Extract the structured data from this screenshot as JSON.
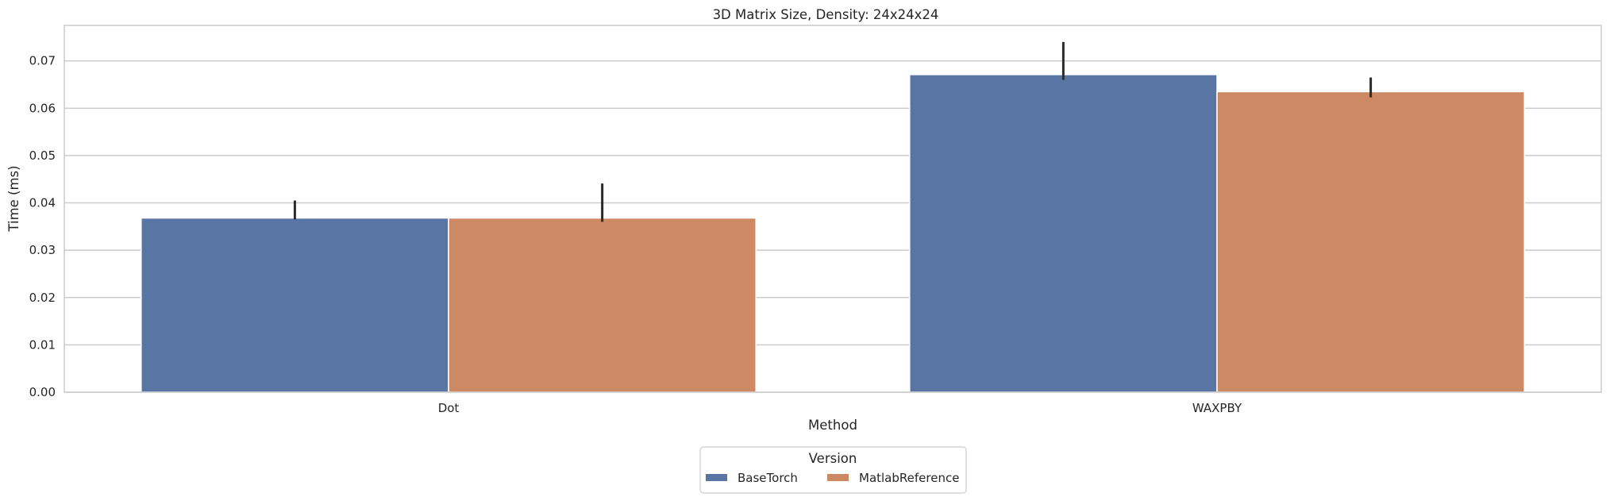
{
  "chart_data": {
    "type": "bar",
    "title": "3D Matrix Size, Density: 24x24x24",
    "xlabel": "Method",
    "ylabel": "Time (ms)",
    "categories": [
      "Dot",
      "WAXPBY"
    ],
    "ylim": [
      0,
      0.0775
    ],
    "yticks": [
      0.0,
      0.01,
      0.02,
      0.03,
      0.04,
      0.05,
      0.06,
      0.07
    ],
    "ytick_labels": [
      "0.00",
      "0.01",
      "0.02",
      "0.03",
      "0.04",
      "0.05",
      "0.06",
      "0.07"
    ],
    "grid": true,
    "legend": {
      "title": "Version",
      "position": "bottom-center"
    },
    "series": [
      {
        "name": "BaseTorch",
        "color": "#5875a4",
        "values": [
          0.0368,
          0.0671
        ],
        "error_low": [
          0.0365,
          0.066
        ],
        "error_high": [
          0.0405,
          0.074
        ]
      },
      {
        "name": "MatlabReference",
        "color": "#cc8963",
        "values": [
          0.0368,
          0.0635
        ],
        "error_low": [
          0.036,
          0.0623
        ],
        "error_high": [
          0.0441,
          0.0665
        ]
      }
    ]
  }
}
